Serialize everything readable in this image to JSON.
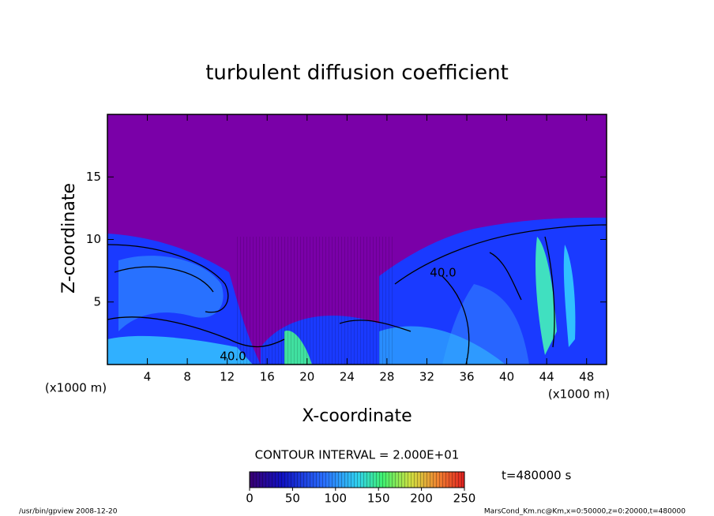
{
  "chart_data": {
    "type": "contour",
    "title": "turbulent diffusion coefficient",
    "x_label": "X-coordinate",
    "y_label": "Z-coordinate",
    "x_unit_label": "(x1000 m)",
    "y_unit_label": "(x1000 m)",
    "xlim": [
      0,
      50
    ],
    "xticks": [
      4,
      8,
      12,
      16,
      20,
      24,
      28,
      32,
      36,
      40,
      44,
      48
    ],
    "ylim": [
      0,
      20
    ],
    "yticks": [
      5,
      10,
      15
    ],
    "annotations": [
      "40.0",
      "40.0"
    ],
    "contour_interval": "CONTOUR INTERVAL = 2.000E+01",
    "colorbar": {
      "lim": [
        0,
        250
      ],
      "ticks": [
        0,
        50,
        100,
        150,
        200,
        250
      ]
    },
    "time_label": "t=480000 s",
    "footer_left": "/usr/bin/gpview   2008-12-20",
    "footer_right": "MarsCond_Km.nc@Km,x=0:50000,z=0:20000,t=480000"
  }
}
